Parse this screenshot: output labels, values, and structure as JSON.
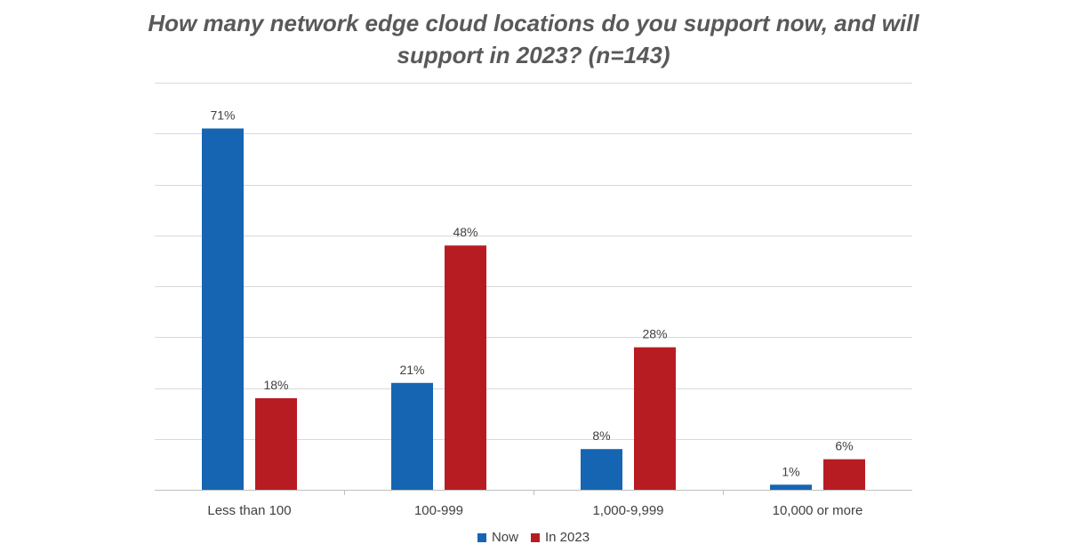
{
  "chart_data": {
    "type": "bar",
    "title": "How many network edge cloud locations do you support now, and will support in 2023? (n=143)",
    "categories": [
      "Less than 100",
      "100-999",
      "1,000-9,999",
      "10,000 or more"
    ],
    "series": [
      {
        "name": "Now",
        "color": "#1565b3",
        "values": [
          71,
          21,
          8,
          1
        ],
        "labels": [
          "71%",
          "21%",
          "8%",
          "1%"
        ]
      },
      {
        "name": "In 2023",
        "color": "#b81c23",
        "values": [
          18,
          48,
          28,
          6
        ],
        "labels": [
          "18%",
          "48%",
          "28%",
          "6%"
        ]
      }
    ],
    "ylim": [
      0,
      80
    ],
    "y_gridline_step": 10,
    "grid": true,
    "y_axis_labels_shown": false,
    "legend_position": "bottom",
    "axis_color": "#bfbfbf",
    "grid_color": "#d9d9d9"
  }
}
